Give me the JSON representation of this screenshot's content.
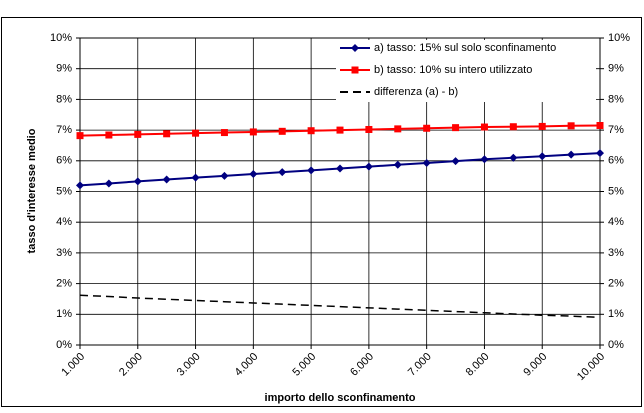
{
  "chart_data": {
    "type": "line",
    "xlabel": "importo dello sconfinamento",
    "ylabel": "tasso d'interesse medio",
    "x": [
      1000,
      1500,
      2000,
      2500,
      3000,
      3500,
      4000,
      4500,
      5000,
      5500,
      6000,
      6500,
      7000,
      7500,
      8000,
      8500,
      9000,
      9500,
      10000
    ],
    "series": [
      {
        "name": "a) tasso: 15% sul solo sconfinamento",
        "color": "#000080",
        "marker": "diamond",
        "dash": "solid",
        "values": [
          5.2,
          5.26,
          5.33,
          5.39,
          5.45,
          5.51,
          5.57,
          5.63,
          5.69,
          5.75,
          5.81,
          5.87,
          5.93,
          5.99,
          6.05,
          6.1,
          6.15,
          6.2,
          6.25
        ]
      },
      {
        "name": "b) tasso: 10% su intero utilizzato",
        "color": "#ff0000",
        "marker": "square",
        "dash": "solid",
        "values": [
          6.82,
          6.84,
          6.86,
          6.88,
          6.9,
          6.92,
          6.94,
          6.96,
          6.98,
          7.0,
          7.02,
          7.04,
          7.06,
          7.08,
          7.1,
          7.11,
          7.12,
          7.14,
          7.15
        ]
      },
      {
        "name": "differenza (a) - b)",
        "color": "#000000",
        "marker": "none",
        "dash": "dashed",
        "values": [
          1.62,
          1.58,
          1.53,
          1.49,
          1.45,
          1.41,
          1.37,
          1.33,
          1.29,
          1.25,
          1.21,
          1.17,
          1.13,
          1.09,
          1.05,
          1.01,
          0.97,
          0.94,
          0.9
        ]
      }
    ],
    "xlim": [
      1000,
      10000
    ],
    "xticks": [
      {
        "value": 1000,
        "label": "1.000"
      },
      {
        "value": 2000,
        "label": "2.000"
      },
      {
        "value": 3000,
        "label": "3.000"
      },
      {
        "value": 4000,
        "label": "4.000"
      },
      {
        "value": 5000,
        "label": "5.000"
      },
      {
        "value": 6000,
        "label": "6.000"
      },
      {
        "value": 7000,
        "label": "7.000"
      },
      {
        "value": 8000,
        "label": "8.000"
      },
      {
        "value": 9000,
        "label": "9.000"
      },
      {
        "value": 10000,
        "label": "10.000"
      }
    ],
    "ylim": [
      0,
      10
    ],
    "yticks": [
      {
        "value": 0,
        "label": "0%"
      },
      {
        "value": 1,
        "label": "1%"
      },
      {
        "value": 2,
        "label": "2%"
      },
      {
        "value": 3,
        "label": "3%"
      },
      {
        "value": 4,
        "label": "4%"
      },
      {
        "value": 5,
        "label": "5%"
      },
      {
        "value": 6,
        "label": "6%"
      },
      {
        "value": 7,
        "label": "7%"
      },
      {
        "value": 8,
        "label": "8%"
      },
      {
        "value": 9,
        "label": "9%"
      },
      {
        "value": 10,
        "label": "10%"
      }
    ],
    "y2lim": [
      0,
      10
    ],
    "y2ticks": [
      {
        "value": 0,
        "label": "0%"
      },
      {
        "value": 1,
        "label": "1%"
      },
      {
        "value": 2,
        "label": "2%"
      },
      {
        "value": 3,
        "label": "3%"
      },
      {
        "value": 4,
        "label": "4%"
      },
      {
        "value": 5,
        "label": "5%"
      },
      {
        "value": 6,
        "label": "6%"
      },
      {
        "value": 7,
        "label": "7%"
      },
      {
        "value": 8,
        "label": "8%"
      },
      {
        "value": 9,
        "label": "9%"
      },
      {
        "value": 10,
        "label": "10%"
      }
    ],
    "grid": true,
    "legend": "top-right"
  }
}
